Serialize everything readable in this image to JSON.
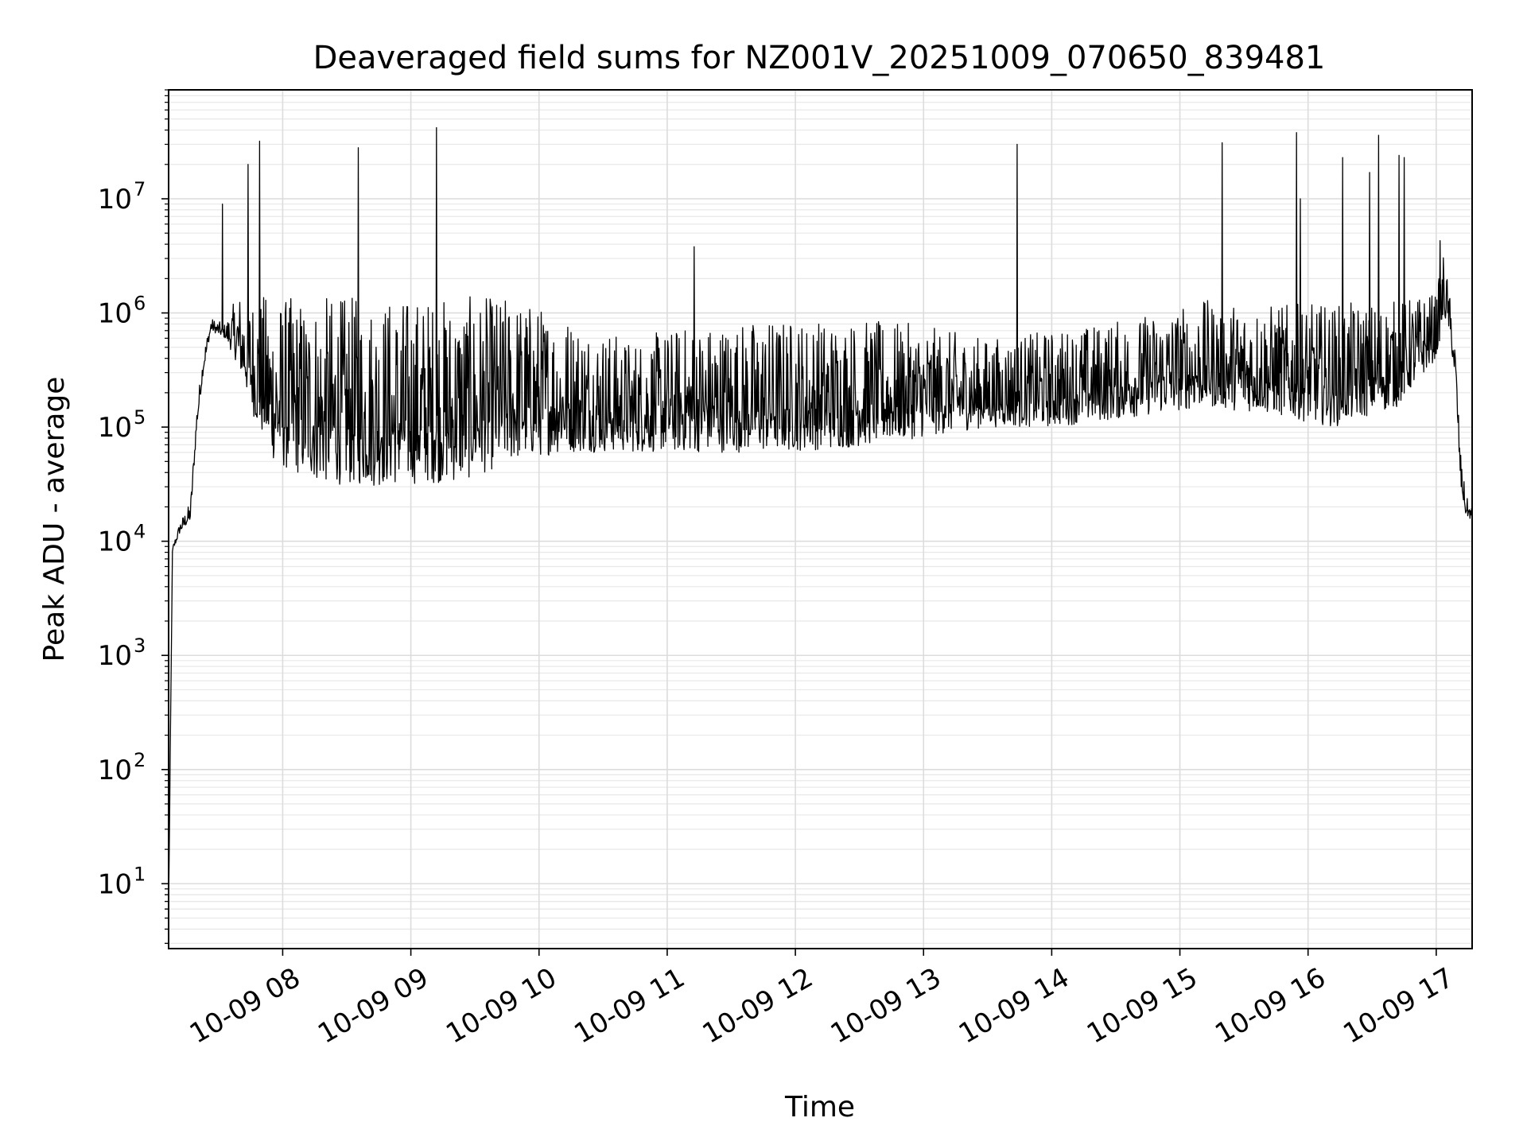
{
  "chart_data": {
    "type": "line",
    "title": "Deaveraged field sums for NZ001V_20251009_070650_839481",
    "xlabel": "Time",
    "ylabel": "Peak ADU - average",
    "yscale": "log",
    "ylim": [
      2.7,
      90000000
    ],
    "xlim_hours": [
      7.11,
      17.28
    ],
    "grid": "major+minor",
    "line_color": "#000000",
    "x_ticks": [
      {
        "hour": 8,
        "label": "10-09 08"
      },
      {
        "hour": 9,
        "label": "10-09 09"
      },
      {
        "hour": 10,
        "label": "10-09 10"
      },
      {
        "hour": 11,
        "label": "10-09 11"
      },
      {
        "hour": 12,
        "label": "10-09 12"
      },
      {
        "hour": 13,
        "label": "10-09 13"
      },
      {
        "hour": 14,
        "label": "10-09 14"
      },
      {
        "hour": 15,
        "label": "10-09 15"
      },
      {
        "hour": 16,
        "label": "10-09 16"
      },
      {
        "hour": 17,
        "label": "10-09 17"
      }
    ],
    "y_ticks": [
      {
        "value": 10,
        "base": "10",
        "exp": "1"
      },
      {
        "value": 100,
        "base": "10",
        "exp": "2"
      },
      {
        "value": 1000,
        "base": "10",
        "exp": "3"
      },
      {
        "value": 10000,
        "base": "10",
        "exp": "4"
      },
      {
        "value": 100000,
        "base": "10",
        "exp": "5"
      },
      {
        "value": 1000000,
        "base": "10",
        "exp": "6"
      },
      {
        "value": 10000000,
        "base": "10",
        "exp": "7"
      }
    ],
    "series": [
      {
        "name": "Peak ADU - average",
        "envelope": [
          {
            "hour": 7.11,
            "low": 6,
            "high": 6
          },
          {
            "hour": 7.14,
            "low": 8000,
            "high": 9000
          },
          {
            "hour": 7.2,
            "low": 12000,
            "high": 15000
          },
          {
            "hour": 7.28,
            "low": 15000,
            "high": 22000
          },
          {
            "hour": 7.33,
            "low": 100000,
            "high": 150000
          },
          {
            "hour": 7.38,
            "low": 300000,
            "high": 450000
          },
          {
            "hour": 7.44,
            "low": 700000,
            "high": 900000
          },
          {
            "hour": 7.55,
            "low": 600000,
            "high": 800000
          },
          {
            "hour": 7.65,
            "low": 350000,
            "high": 1500000
          },
          {
            "hour": 7.8,
            "low": 100000,
            "high": 1500000
          },
          {
            "hour": 7.95,
            "low": 45000,
            "high": 1400000
          },
          {
            "hour": 8.3,
            "low": 32000,
            "high": 1400000
          },
          {
            "hour": 8.7,
            "low": 30000,
            "high": 1400000
          },
          {
            "hour": 9.1,
            "low": 32000,
            "high": 1400000
          },
          {
            "hour": 9.4,
            "low": 33000,
            "high": 1400000
          },
          {
            "hour": 9.8,
            "low": 50000,
            "high": 1400000
          },
          {
            "hour": 10.2,
            "low": 60000,
            "high": 1000000
          },
          {
            "hour": 10.7,
            "low": 60000,
            "high": 600000
          },
          {
            "hour": 11.2,
            "low": 60000,
            "high": 800000
          },
          {
            "hour": 11.8,
            "low": 60000,
            "high": 900000
          },
          {
            "hour": 12.4,
            "low": 65000,
            "high": 900000
          },
          {
            "hour": 12.95,
            "low": 80000,
            "high": 800000
          },
          {
            "hour": 13.5,
            "low": 100000,
            "high": 600000
          },
          {
            "hour": 14.0,
            "low": 100000,
            "high": 700000
          },
          {
            "hour": 14.6,
            "low": 120000,
            "high": 900000
          },
          {
            "hour": 15.2,
            "low": 150000,
            "high": 1300000
          },
          {
            "hour": 15.7,
            "low": 130000,
            "high": 1200000
          },
          {
            "hour": 16.2,
            "low": 100000,
            "high": 1200000
          },
          {
            "hour": 16.7,
            "low": 150000,
            "high": 1300000
          },
          {
            "hour": 17.0,
            "low": 400000,
            "high": 1500000
          },
          {
            "hour": 17.06,
            "low": 900000,
            "high": 3500000
          },
          {
            "hour": 17.1,
            "low": 700000,
            "high": 1600000
          },
          {
            "hour": 17.15,
            "low": 250000,
            "high": 500000
          },
          {
            "hour": 17.19,
            "low": 30000,
            "high": 60000
          },
          {
            "hour": 17.23,
            "low": 17000,
            "high": 25000
          },
          {
            "hour": 17.28,
            "low": 15000,
            "high": 20000
          }
        ],
        "spikes": [
          {
            "hour": 7.53,
            "value": 9000000
          },
          {
            "hour": 7.73,
            "value": 20000000
          },
          {
            "hour": 7.82,
            "value": 32000000
          },
          {
            "hour": 8.59,
            "value": 28000000
          },
          {
            "hour": 9.2,
            "value": 42000000
          },
          {
            "hour": 11.21,
            "value": 3800000
          },
          {
            "hour": 13.73,
            "value": 30000000
          },
          {
            "hour": 15.33,
            "value": 31000000
          },
          {
            "hour": 15.91,
            "value": 38000000
          },
          {
            "hour": 15.94,
            "value": 10000000
          },
          {
            "hour": 16.27,
            "value": 23000000
          },
          {
            "hour": 16.48,
            "value": 17000000
          },
          {
            "hour": 16.55,
            "value": 36000000
          },
          {
            "hour": 16.71,
            "value": 24000000
          },
          {
            "hour": 16.75,
            "value": 23000000
          },
          {
            "hour": 17.03,
            "value": 4300000
          }
        ]
      }
    ]
  }
}
